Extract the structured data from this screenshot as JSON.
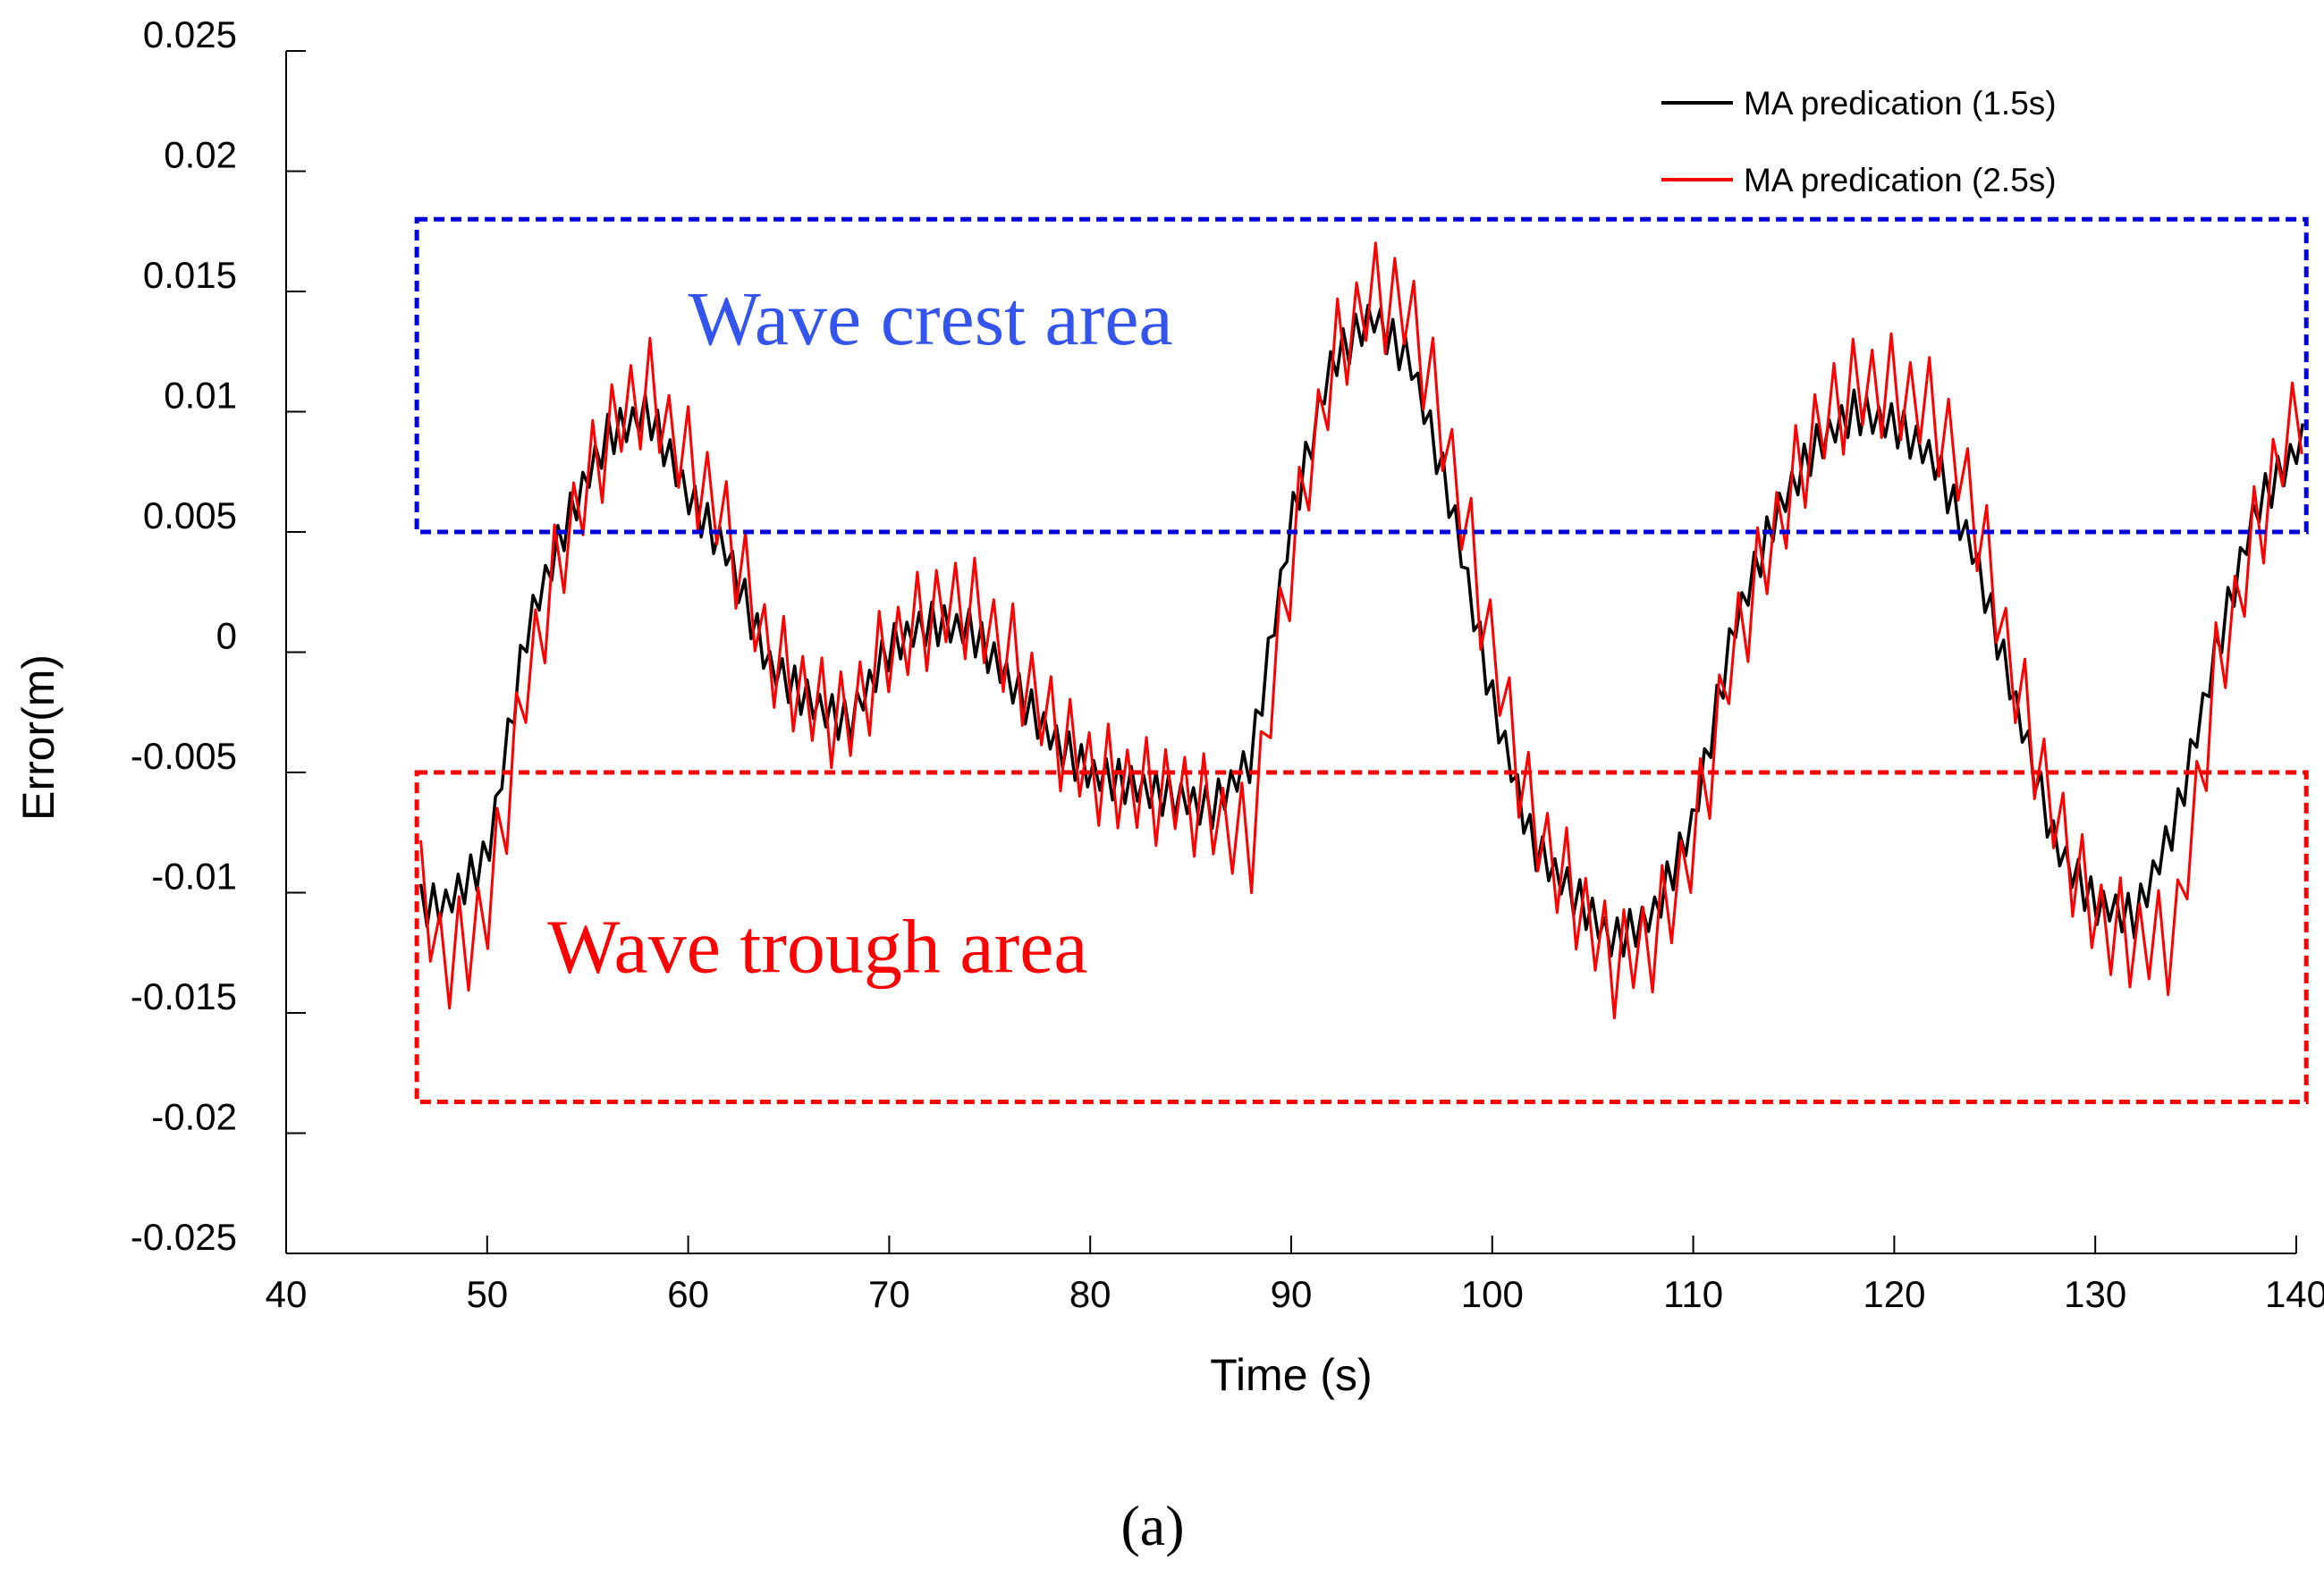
{
  "chart_data": {
    "type": "line",
    "title": "",
    "caption": "(a)",
    "xlabel": "Time (s)",
    "ylabel": "Error(m)",
    "xlim": [
      40,
      140
    ],
    "ylim": [
      -0.025,
      0.025
    ],
    "xticks": [
      40,
      50,
      60,
      70,
      80,
      90,
      100,
      110,
      120,
      130,
      140
    ],
    "yticks": [
      0.025,
      0.02,
      0.015,
      0.01,
      0.005,
      0,
      -0.005,
      -0.01,
      -0.015,
      -0.02,
      -0.025
    ],
    "ytick_labels": [
      "0.025",
      "0.02",
      "0.015",
      "0.01",
      "0.005",
      "0",
      "-0.005",
      "-0.01",
      "-0.015",
      "-0.02",
      "-0.025"
    ],
    "grid": false,
    "legend_position": "top-right",
    "series": [
      {
        "name": "MA predication (1.5s)",
        "color": "#000000",
        "anchors": [
          [
            46.7,
            -0.0105
          ],
          [
            48,
            -0.0105
          ],
          [
            50,
            -0.0085
          ],
          [
            52,
            0.001
          ],
          [
            54,
            0.0055
          ],
          [
            56,
            0.009
          ],
          [
            58,
            0.01
          ],
          [
            60,
            0.0065
          ],
          [
            62,
            0.004
          ],
          [
            64,
            -0.0005
          ],
          [
            66,
            -0.002
          ],
          [
            68,
            -0.003
          ],
          [
            70,
            0.0002
          ],
          [
            72,
            0.0012
          ],
          [
            74,
            0.001
          ],
          [
            76,
            -0.0012
          ],
          [
            78,
            -0.0035
          ],
          [
            80,
            -0.005
          ],
          [
            82,
            -0.0055
          ],
          [
            84,
            -0.006
          ],
          [
            86,
            -0.0065
          ],
          [
            88,
            -0.0045
          ],
          [
            90,
            0.0055
          ],
          [
            92,
            0.012
          ],
          [
            94,
            0.014
          ],
          [
            96,
            0.012
          ],
          [
            98,
            0.006
          ],
          [
            100,
            -0.002
          ],
          [
            102,
            -0.008
          ],
          [
            104,
            -0.01
          ],
          [
            106,
            -0.012
          ],
          [
            108,
            -0.011
          ],
          [
            110,
            -0.007
          ],
          [
            112,
            0.001
          ],
          [
            114,
            0.0055
          ],
          [
            116,
            0.0085
          ],
          [
            118,
            0.01
          ],
          [
            120,
            0.0095
          ],
          [
            122,
            0.008
          ],
          [
            124,
            0.004
          ],
          [
            126,
            -0.002
          ],
          [
            128,
            -0.008
          ],
          [
            130,
            -0.0105
          ],
          [
            132,
            -0.011
          ],
          [
            134,
            -0.007
          ],
          [
            136,
            0.0
          ],
          [
            138,
            0.006
          ],
          [
            140.5,
            0.009
          ]
        ],
        "noise_amplitude": 0.0018,
        "oscillation_period": 0.62
      },
      {
        "name": "MA predication (2.5s)",
        "color": "#ff0000",
        "anchors": [
          [
            46.7,
            -0.01
          ],
          [
            48,
            -0.013
          ],
          [
            50,
            -0.011
          ],
          [
            52,
            -0.001
          ],
          [
            54,
            0.005
          ],
          [
            56,
            0.009
          ],
          [
            58,
            0.011
          ],
          [
            60,
            0.008
          ],
          [
            62,
            0.005
          ],
          [
            64,
            0.0
          ],
          [
            66,
            -0.002
          ],
          [
            68,
            -0.003
          ],
          [
            70,
            0.0003
          ],
          [
            72,
            0.0015
          ],
          [
            74,
            0.002
          ],
          [
            76,
            0.0
          ],
          [
            78,
            -0.003
          ],
          [
            80,
            -0.005
          ],
          [
            82,
            -0.0055
          ],
          [
            84,
            -0.006
          ],
          [
            86,
            -0.0065
          ],
          [
            88,
            -0.008
          ],
          [
            90,
            0.004
          ],
          [
            92,
            0.012
          ],
          [
            94,
            0.015
          ],
          [
            96,
            0.014
          ],
          [
            98,
            0.008
          ],
          [
            100,
            0.0
          ],
          [
            102,
            -0.007
          ],
          [
            104,
            -0.01
          ],
          [
            106,
            -0.013
          ],
          [
            108,
            -0.012
          ],
          [
            110,
            -0.008
          ],
          [
            112,
            0.0
          ],
          [
            114,
            0.005
          ],
          [
            116,
            0.009
          ],
          [
            118,
            0.011
          ],
          [
            120,
            0.011
          ],
          [
            122,
            0.01
          ],
          [
            124,
            0.006
          ],
          [
            126,
            -0.001
          ],
          [
            128,
            -0.007
          ],
          [
            130,
            -0.011
          ],
          [
            132,
            -0.012
          ],
          [
            134,
            -0.012
          ],
          [
            136,
            -0.001
          ],
          [
            138,
            0.005
          ],
          [
            140.5,
            0.011
          ]
        ],
        "noise_amplitude": 0.0045,
        "oscillation_period": 0.95
      }
    ],
    "annotations": [
      {
        "text": "Wave crest area",
        "color": "#3355ee",
        "box_color": "#0000dd",
        "x_range": [
          46.5,
          140.5
        ],
        "y_range": [
          0.005,
          0.018
        ],
        "label_at": [
          60,
          0.0128
        ]
      },
      {
        "text": "Wave trough area",
        "color": "#ff0000",
        "box_color": "#ff0000",
        "x_range": [
          46.5,
          140.5
        ],
        "y_range": [
          -0.0187,
          -0.005
        ],
        "label_at": [
          53,
          -0.0133
        ]
      }
    ]
  }
}
